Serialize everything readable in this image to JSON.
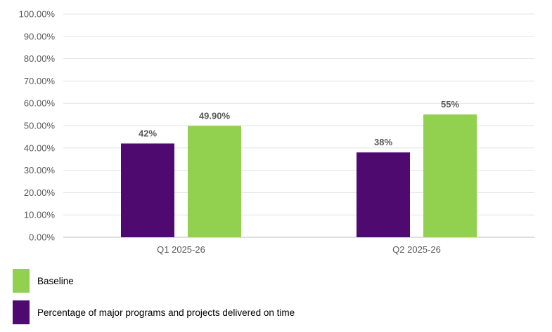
{
  "chart_data": {
    "type": "bar",
    "categories": [
      "Q1 2025-26",
      "Q2 2025-26"
    ],
    "series": [
      {
        "name": "Percentage of major programs and projects delivered on time",
        "values": [
          42,
          38
        ],
        "labels": [
          "42%",
          "38%"
        ],
        "color": "#4e0a6f"
      },
      {
        "name": "Baseline",
        "values": [
          49.9,
          55
        ],
        "labels": [
          "49.90%",
          "55%"
        ],
        "color": "#92d050"
      }
    ],
    "yticks": [
      "0.00%",
      "10.00%",
      "20.00%",
      "30.00%",
      "40.00%",
      "50.00%",
      "60.00%",
      "70.00%",
      "80.00%",
      "90.00%",
      "100.00%"
    ],
    "ylim": [
      0,
      100
    ],
    "grid": true,
    "legend_position": "bottom-left",
    "legend_order": [
      1,
      0
    ]
  }
}
